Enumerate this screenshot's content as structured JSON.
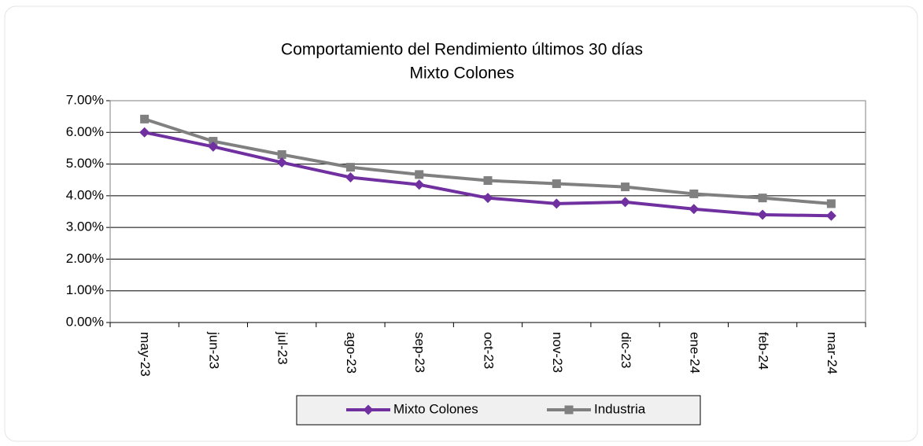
{
  "chart_data": {
    "type": "line",
    "title": "Comportamiento del Rendimiento últimos 30 días",
    "subtitle": "Mixto Colones",
    "categories": [
      "may-23",
      "jun-23",
      "jul-23",
      "ago-23",
      "sep-23",
      "oct-23",
      "nov-23",
      "dic-23",
      "ene-24",
      "feb-24",
      "mar-24"
    ],
    "series": [
      {
        "name": "Mixto Colones",
        "color": "#7030a0",
        "marker": "diamond",
        "values": [
          6.0,
          5.55,
          5.05,
          4.58,
          4.35,
          3.93,
          3.75,
          3.8,
          3.58,
          3.4,
          3.37
        ]
      },
      {
        "name": "Industria",
        "color": "#808080",
        "marker": "square",
        "values": [
          6.42,
          5.72,
          5.3,
          4.9,
          4.67,
          4.48,
          4.38,
          4.28,
          4.06,
          3.93,
          3.75
        ]
      }
    ],
    "ylim": [
      0,
      7
    ],
    "yticks": [
      {
        "value": 0,
        "label": "0.00%"
      },
      {
        "value": 1,
        "label": "1.00%"
      },
      {
        "value": 2,
        "label": "2.00%"
      },
      {
        "value": 3,
        "label": "3.00%"
      },
      {
        "value": 4,
        "label": "4.00%"
      },
      {
        "value": 5,
        "label": "5.00%"
      },
      {
        "value": 6,
        "label": "6.00%"
      },
      {
        "value": 7,
        "label": "7.00%"
      }
    ],
    "grid": true,
    "legend": "bottom"
  }
}
